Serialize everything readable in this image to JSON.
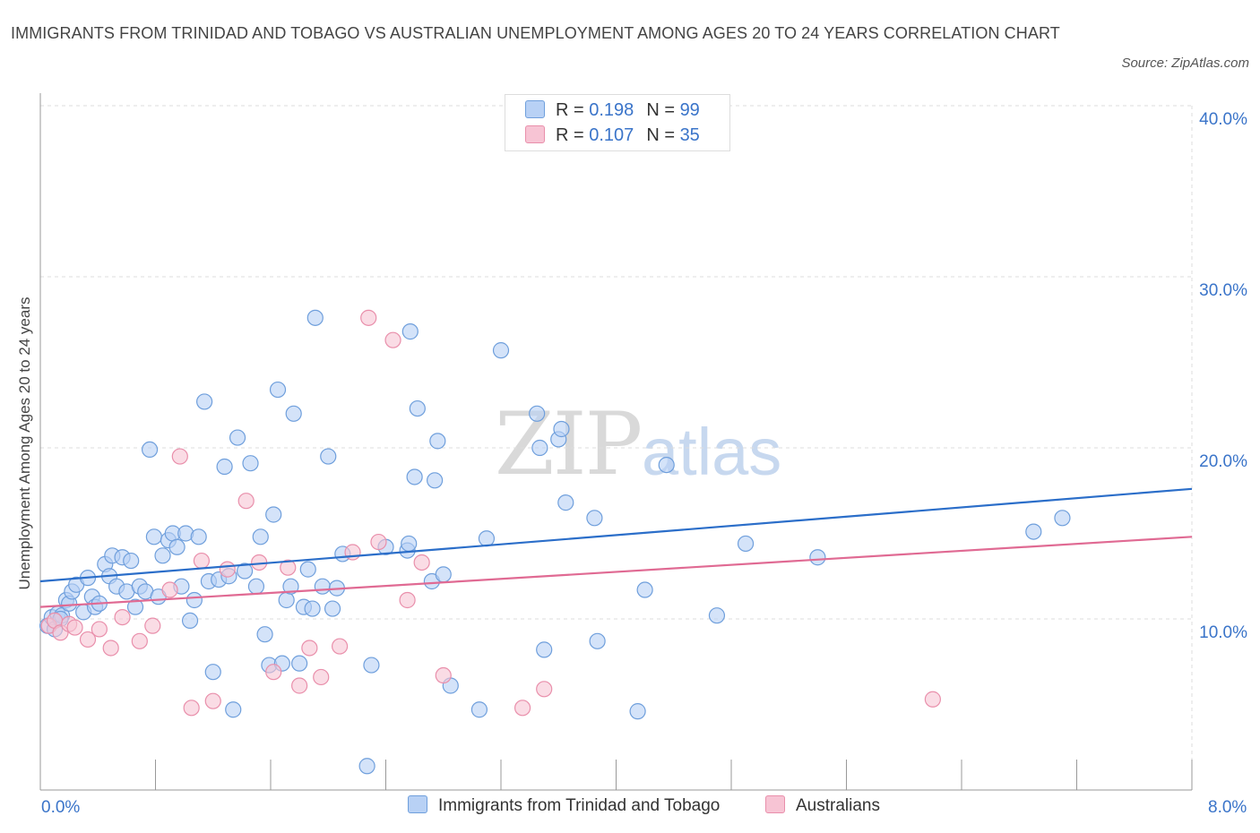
{
  "title": "IMMIGRANTS FROM TRINIDAD AND TOBAGO VS AUSTRALIAN UNEMPLOYMENT AMONG AGES 20 TO 24 YEARS CORRELATION CHART",
  "source": "Source: ZipAtlas.com",
  "watermark": {
    "zip": "ZIP",
    "atlas": "atlas"
  },
  "legend": {
    "rows": [
      {
        "r_label": "R = ",
        "r_value": "0.198",
        "n_label": "N = ",
        "n_value": "99"
      },
      {
        "r_label": "R = ",
        "r_value": "0.107",
        "n_label": "N = ",
        "n_value": "35"
      }
    ]
  },
  "colors": {
    "blue_fill": "#b8d1f5",
    "blue_stroke": "#6f9fdc",
    "blue_line": "#2b6ec9",
    "pink_fill": "#f7c4d4",
    "pink_stroke": "#e98fab",
    "pink_line": "#e06a93",
    "tick_text": "#3a74c9",
    "grid": "#dddddd"
  },
  "chart_data": {
    "type": "scatter",
    "title": "IMMIGRANTS FROM TRINIDAD AND TOBAGO VS AUSTRALIAN UNEMPLOYMENT AMONG AGES 20 TO 24 YEARS CORRELATION CHART",
    "xlabel": "",
    "ylabel": "Unemployment Among Ages 20 to 24 years",
    "xlim": [
      0,
      8
    ],
    "ylim": [
      0,
      40
    ],
    "x_tick_labels": [
      "0.0%",
      "8.0%"
    ],
    "y_ticks": [
      10,
      20,
      30,
      40
    ],
    "y_tick_labels": [
      "10.0%",
      "20.0%",
      "30.0%",
      "40.0%"
    ],
    "grid": true,
    "legend_position": "top-center",
    "series": [
      {
        "name": "Immigrants from Trinidad and Tobago",
        "color": "#6f9fdc",
        "trend": {
          "x": [
            0,
            8
          ],
          "y": [
            12.2,
            17.6
          ]
        },
        "points": [
          [
            0.05,
            9.6
          ],
          [
            0.08,
            10.1
          ],
          [
            0.12,
            10.3
          ],
          [
            0.15,
            10.2
          ],
          [
            0.18,
            11.1
          ],
          [
            0.2,
            10.9
          ],
          [
            0.22,
            11.6
          ],
          [
            0.25,
            12.0
          ],
          [
            0.3,
            10.4
          ],
          [
            0.33,
            12.4
          ],
          [
            0.36,
            11.3
          ],
          [
            0.38,
            10.7
          ],
          [
            0.41,
            10.9
          ],
          [
            0.45,
            13.2
          ],
          [
            0.48,
            12.5
          ],
          [
            0.5,
            13.7
          ],
          [
            0.53,
            11.9
          ],
          [
            0.57,
            13.6
          ],
          [
            0.6,
            11.6
          ],
          [
            0.63,
            13.4
          ],
          [
            0.66,
            10.7
          ],
          [
            0.69,
            11.9
          ],
          [
            0.73,
            11.6
          ],
          [
            0.76,
            19.9
          ],
          [
            0.79,
            14.8
          ],
          [
            0.82,
            11.3
          ],
          [
            0.85,
            13.7
          ],
          [
            0.89,
            14.6
          ],
          [
            0.92,
            15.0
          ],
          [
            0.95,
            14.2
          ],
          [
            0.98,
            11.9
          ],
          [
            1.01,
            15.0
          ],
          [
            1.04,
            9.9
          ],
          [
            1.07,
            11.1
          ],
          [
            1.1,
            14.8
          ],
          [
            1.14,
            22.7
          ],
          [
            1.17,
            12.2
          ],
          [
            1.2,
            6.9
          ],
          [
            1.24,
            12.3
          ],
          [
            1.28,
            18.9
          ],
          [
            1.31,
            12.5
          ],
          [
            1.34,
            4.7
          ],
          [
            1.37,
            20.6
          ],
          [
            1.42,
            12.8
          ],
          [
            1.46,
            19.1
          ],
          [
            1.5,
            11.9
          ],
          [
            1.53,
            14.8
          ],
          [
            1.56,
            9.1
          ],
          [
            1.59,
            7.3
          ],
          [
            1.62,
            16.1
          ],
          [
            1.65,
            23.4
          ],
          [
            1.68,
            7.4
          ],
          [
            1.71,
            11.1
          ],
          [
            1.74,
            11.9
          ],
          [
            1.76,
            22.0
          ],
          [
            1.8,
            7.4
          ],
          [
            1.83,
            10.7
          ],
          [
            1.86,
            12.9
          ],
          [
            1.89,
            10.6
          ],
          [
            1.91,
            27.6
          ],
          [
            1.96,
            11.9
          ],
          [
            2.0,
            19.5
          ],
          [
            2.03,
            10.6
          ],
          [
            2.06,
            11.8
          ],
          [
            2.1,
            13.8
          ],
          [
            2.27,
            1.4
          ],
          [
            2.3,
            7.3
          ],
          [
            2.4,
            14.2
          ],
          [
            2.55,
            14.0
          ],
          [
            2.56,
            14.4
          ],
          [
            2.57,
            26.8
          ],
          [
            2.6,
            18.3
          ],
          [
            2.62,
            22.3
          ],
          [
            2.72,
            12.2
          ],
          [
            2.74,
            18.1
          ],
          [
            2.76,
            20.4
          ],
          [
            2.8,
            12.6
          ],
          [
            2.85,
            6.1
          ],
          [
            3.05,
            4.7
          ],
          [
            3.1,
            14.7
          ],
          [
            3.2,
            25.7
          ],
          [
            3.45,
            22.0
          ],
          [
            3.47,
            20.0
          ],
          [
            3.5,
            8.2
          ],
          [
            3.6,
            20.5
          ],
          [
            3.62,
            21.1
          ],
          [
            3.65,
            16.8
          ],
          [
            3.85,
            15.9
          ],
          [
            3.87,
            8.7
          ],
          [
            4.15,
            4.6
          ],
          [
            4.2,
            11.7
          ],
          [
            4.35,
            19.0
          ],
          [
            4.7,
            10.2
          ],
          [
            4.9,
            14.4
          ],
          [
            5.4,
            13.6
          ],
          [
            6.9,
            15.1
          ],
          [
            7.1,
            15.9
          ],
          [
            0.1,
            9.4
          ],
          [
            0.14,
            10.0
          ]
        ]
      },
      {
        "name": "Australians",
        "color": "#e98fab",
        "trend": {
          "x": [
            0,
            8
          ],
          "y": [
            10.7,
            14.8
          ]
        },
        "points": [
          [
            0.06,
            9.6
          ],
          [
            0.1,
            9.9
          ],
          [
            0.14,
            9.2
          ],
          [
            0.2,
            9.7
          ],
          [
            0.24,
            9.5
          ],
          [
            0.33,
            8.8
          ],
          [
            0.41,
            9.4
          ],
          [
            0.49,
            8.3
          ],
          [
            0.57,
            10.1
          ],
          [
            0.69,
            8.7
          ],
          [
            0.78,
            9.6
          ],
          [
            0.9,
            11.7
          ],
          [
            0.97,
            19.5
          ],
          [
            1.05,
            4.8
          ],
          [
            1.12,
            13.4
          ],
          [
            1.2,
            5.2
          ],
          [
            1.3,
            12.9
          ],
          [
            1.43,
            16.9
          ],
          [
            1.52,
            13.3
          ],
          [
            1.62,
            6.9
          ],
          [
            1.72,
            13.0
          ],
          [
            1.8,
            6.1
          ],
          [
            1.87,
            8.3
          ],
          [
            1.95,
            6.6
          ],
          [
            2.08,
            8.4
          ],
          [
            2.17,
            13.9
          ],
          [
            2.28,
            27.6
          ],
          [
            2.35,
            14.5
          ],
          [
            2.45,
            26.3
          ],
          [
            2.55,
            11.1
          ],
          [
            2.65,
            13.3
          ],
          [
            2.8,
            6.7
          ],
          [
            3.35,
            4.8
          ],
          [
            3.5,
            5.9
          ],
          [
            6.2,
            5.3
          ]
        ]
      }
    ]
  },
  "bottom_legend": [
    {
      "label": "Immigrants from Trinidad and Tobago"
    },
    {
      "label": "Australians"
    }
  ]
}
